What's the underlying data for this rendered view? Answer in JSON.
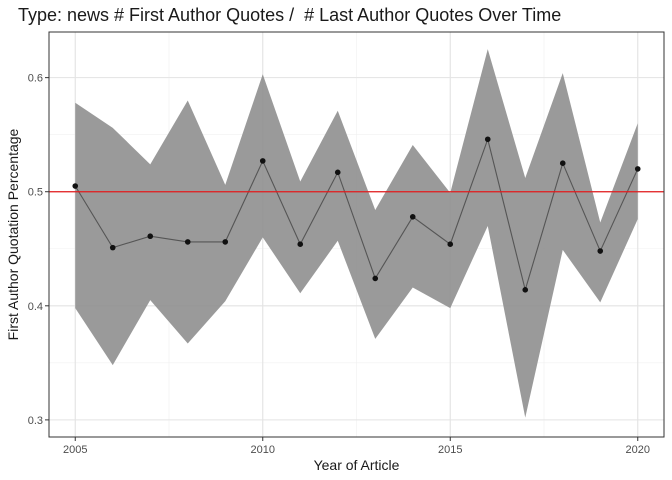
{
  "chart_data": {
    "type": "line",
    "title": "Type: news # First Author Quotes /  # Last Author Quotes Over Time",
    "xlabel": "Year of Article",
    "ylabel": "First Author Quotation Percentage",
    "xlim": [
      2004.3,
      2020.7
    ],
    "ylim": [
      0.285,
      0.64
    ],
    "xticks": [
      2005,
      2010,
      2015,
      2020
    ],
    "xtick_labels": [
      "2005",
      "2010",
      "2015",
      "2020"
    ],
    "yticks": [
      0.3,
      0.4,
      0.5,
      0.6
    ],
    "ytick_labels": [
      "0.3",
      "0.4",
      "0.5",
      "0.6"
    ],
    "grid": true,
    "reference_line": {
      "y": 0.5,
      "color": "#e31a1c"
    },
    "colors": {
      "line": "#555555",
      "point": "#111111",
      "ribbon": "#8c8c8c"
    },
    "x": [
      2005,
      2006,
      2007,
      2008,
      2009,
      2010,
      2011,
      2012,
      2013,
      2014,
      2015,
      2016,
      2017,
      2018,
      2019,
      2020
    ],
    "series": [
      {
        "values": [
          0.505,
          0.451,
          0.461,
          0.456,
          0.456,
          0.527,
          0.454,
          0.517,
          0.424,
          0.478,
          0.454,
          0.546,
          0.414,
          0.525,
          0.448,
          0.52
        ],
        "lower": [
          0.398,
          0.348,
          0.405,
          0.367,
          0.404,
          0.46,
          0.411,
          0.457,
          0.371,
          0.416,
          0.398,
          0.47,
          0.302,
          0.449,
          0.403,
          0.476
        ],
        "upper": [
          0.578,
          0.556,
          0.524,
          0.58,
          0.506,
          0.603,
          0.509,
          0.571,
          0.484,
          0.541,
          0.499,
          0.625,
          0.512,
          0.604,
          0.473,
          0.56
        ]
      }
    ]
  }
}
